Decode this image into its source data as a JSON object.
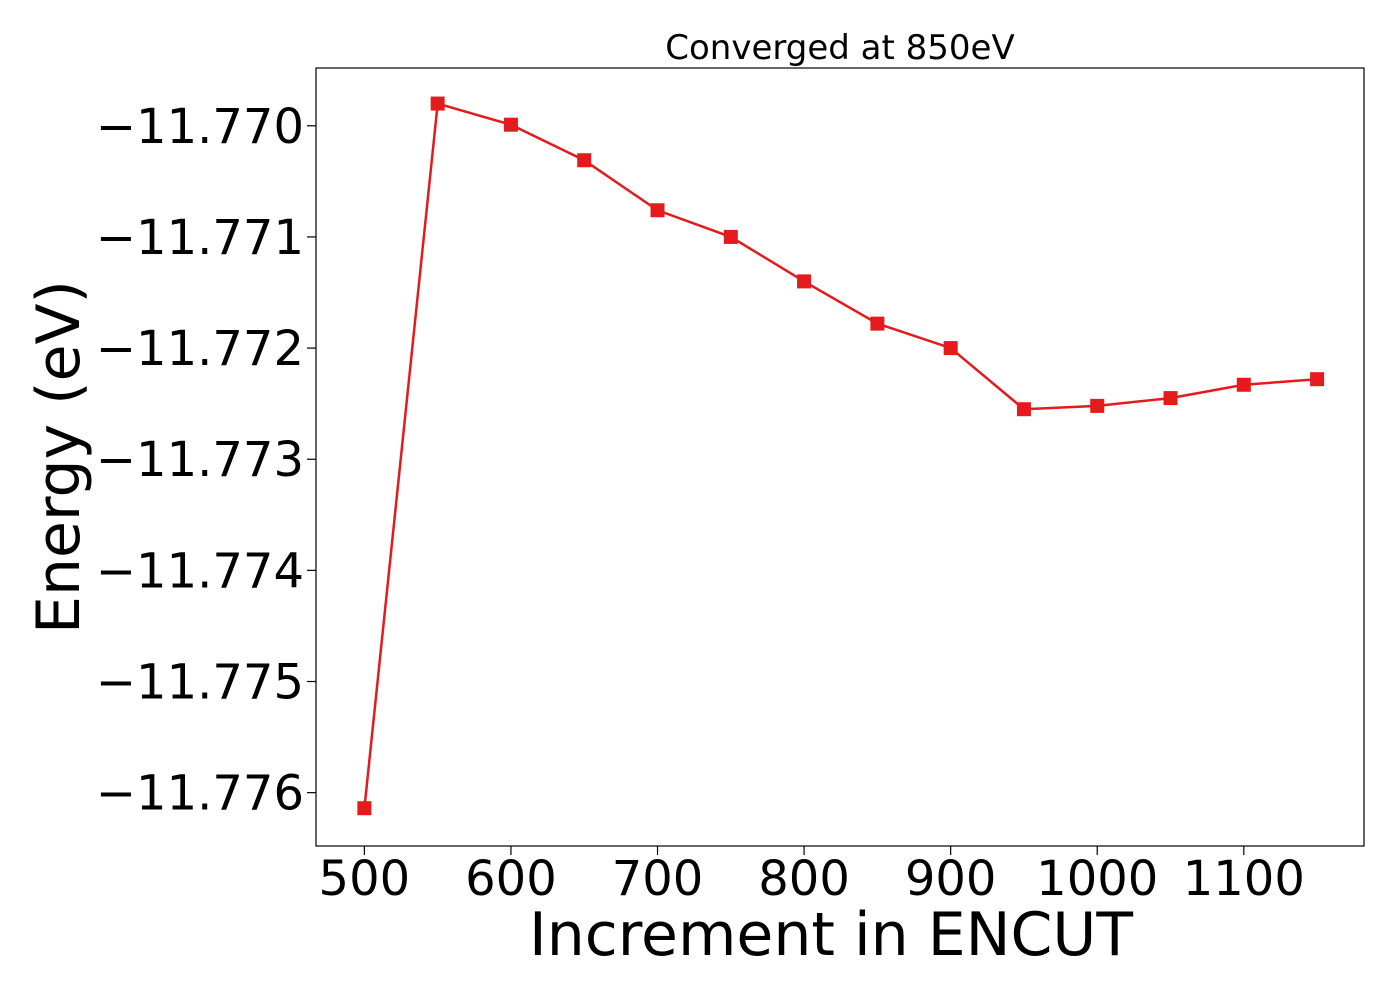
{
  "chart_data": {
    "type": "line",
    "title": "Converged at 850eV",
    "xlabel": "Increment in ENCUT",
    "ylabel": "Energy (eV)",
    "xlim": [
      467,
      1182
    ],
    "ylim": [
      -11.77648,
      -11.76948
    ],
    "xticks": [
      500,
      600,
      700,
      800,
      900,
      1000,
      1100
    ],
    "xtick_labels": [
      "500",
      "600",
      "700",
      "800",
      "900",
      "1000",
      "1100"
    ],
    "yticks": [
      -11.77,
      -11.771,
      -11.772,
      -11.773,
      -11.774,
      -11.775,
      -11.776
    ],
    "ytick_labels": [
      "−11.770",
      "−11.771",
      "−11.772",
      "−11.773",
      "−11.774",
      "−11.775",
      "−11.776"
    ],
    "grid": false,
    "legend": "none",
    "series": [
      {
        "color": "#e41a1c",
        "marker": "square",
        "x": [
          500,
          550,
          600,
          650,
          700,
          750,
          800,
          850,
          900,
          950,
          1000,
          1050,
          1100,
          1150
        ],
        "y": [
          -11.77614,
          -11.7698,
          -11.76999,
          -11.77031,
          -11.77076,
          -11.771,
          -11.7714,
          -11.77178,
          -11.772,
          -11.77255,
          -11.77252,
          -11.77245,
          -11.77233,
          -11.77228
        ]
      }
    ]
  }
}
